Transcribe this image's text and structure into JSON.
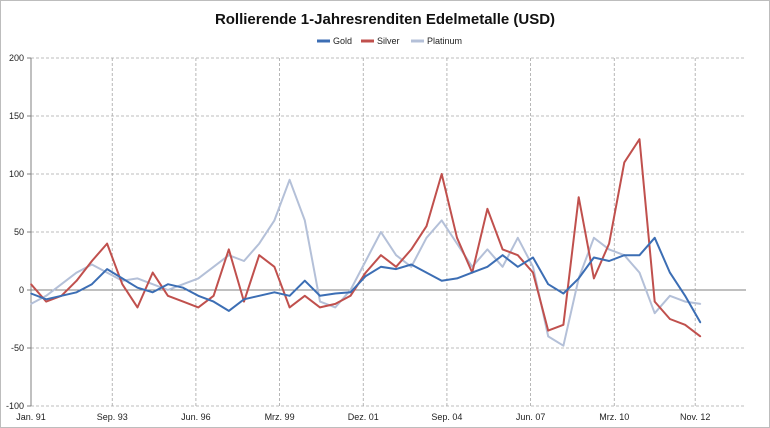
{
  "chart_data": {
    "type": "line",
    "title": "Rollierende 1-Jahresrenditen Edelmetalle (USD)",
    "xlabel": "",
    "ylabel": "",
    "ylim": [
      -100,
      200
    ],
    "yticks": [
      -100,
      -50,
      0,
      50,
      100,
      150,
      200
    ],
    "xlim": [
      1991.0,
      2014.5
    ],
    "x_tick_labels": [
      "Jan. 91",
      "Sep. 93",
      "Jun. 96",
      "Mrz. 99",
      "Dez. 01",
      "Sep. 04",
      "Jun. 07",
      "Mrz. 10",
      "Nov. 12"
    ],
    "x_tick_positions": [
      1991.0,
      1993.67,
      1996.42,
      1999.17,
      2001.92,
      2004.67,
      2007.42,
      2010.17,
      2012.83
    ],
    "grid": true,
    "legend_position": "top-center",
    "series": [
      {
        "name": "Gold",
        "color": "#3c6eb4",
        "x": [
          1991.0,
          1991.5,
          1992.0,
          1992.5,
          1993.0,
          1993.5,
          1994.0,
          1994.5,
          1995.0,
          1995.5,
          1996.0,
          1996.5,
          1997.0,
          1997.5,
          1998.0,
          1998.5,
          1999.0,
          1999.5,
          2000.0,
          2000.5,
          2001.0,
          2001.5,
          2002.0,
          2002.5,
          2003.0,
          2003.5,
          2004.0,
          2004.5,
          2005.0,
          2005.5,
          2006.0,
          2006.5,
          2007.0,
          2007.5,
          2008.0,
          2008.5,
          2009.0,
          2009.5,
          2010.0,
          2010.5,
          2011.0,
          2011.5,
          2012.0,
          2012.5,
          2013.0
        ],
        "values": [
          -3,
          -8,
          -5,
          -2,
          5,
          18,
          10,
          2,
          -2,
          5,
          2,
          -5,
          -10,
          -18,
          -8,
          -5,
          -2,
          -5,
          8,
          -5,
          -3,
          -2,
          12,
          20,
          18,
          22,
          15,
          8,
          10,
          15,
          20,
          30,
          20,
          28,
          5,
          -3,
          10,
          28,
          25,
          30,
          30,
          45,
          15,
          -5,
          -28
        ]
      },
      {
        "name": "Silver",
        "color": "#c0504d",
        "x": [
          1991.0,
          1991.5,
          1992.0,
          1992.5,
          1993.0,
          1993.5,
          1994.0,
          1994.5,
          1995.0,
          1995.5,
          1996.0,
          1996.5,
          1997.0,
          1997.5,
          1998.0,
          1998.5,
          1999.0,
          1999.5,
          2000.0,
          2000.5,
          2001.0,
          2001.5,
          2002.0,
          2002.5,
          2003.0,
          2003.5,
          2004.0,
          2004.5,
          2005.0,
          2005.5,
          2006.0,
          2006.5,
          2007.0,
          2007.5,
          2008.0,
          2008.5,
          2009.0,
          2009.5,
          2010.0,
          2010.5,
          2011.0,
          2011.5,
          2012.0,
          2012.5,
          2013.0
        ],
        "values": [
          5,
          -10,
          -5,
          8,
          25,
          40,
          5,
          -15,
          15,
          -5,
          -10,
          -15,
          -5,
          35,
          -10,
          30,
          20,
          -15,
          -5,
          -15,
          -12,
          -5,
          15,
          30,
          20,
          35,
          55,
          100,
          45,
          15,
          70,
          35,
          30,
          15,
          -35,
          -30,
          80,
          10,
          40,
          110,
          130,
          -10,
          -25,
          -30,
          -40
        ]
      },
      {
        "name": "Platinum",
        "color": "#b4c0d8",
        "x": [
          1991.0,
          1991.5,
          1992.0,
          1992.5,
          1993.0,
          1993.5,
          1994.0,
          1994.5,
          1995.0,
          1995.5,
          1996.0,
          1996.5,
          1997.0,
          1997.5,
          1998.0,
          1998.5,
          1999.0,
          1999.5,
          2000.0,
          2000.5,
          2001.0,
          2001.5,
          2002.0,
          2002.5,
          2003.0,
          2003.5,
          2004.0,
          2004.5,
          2005.0,
          2005.5,
          2006.0,
          2006.5,
          2007.0,
          2007.5,
          2008.0,
          2008.5,
          2009.0,
          2009.5,
          2010.0,
          2010.5,
          2011.0,
          2011.5,
          2012.0,
          2012.5,
          2013.0
        ],
        "values": [
          -12,
          -5,
          5,
          15,
          22,
          15,
          8,
          10,
          5,
          0,
          5,
          10,
          20,
          30,
          25,
          40,
          60,
          95,
          60,
          -10,
          -15,
          0,
          25,
          50,
          30,
          20,
          45,
          60,
          40,
          20,
          35,
          20,
          45,
          20,
          -40,
          -48,
          10,
          45,
          35,
          30,
          15,
          -20,
          -5,
          -10,
          -12
        ]
      }
    ]
  }
}
